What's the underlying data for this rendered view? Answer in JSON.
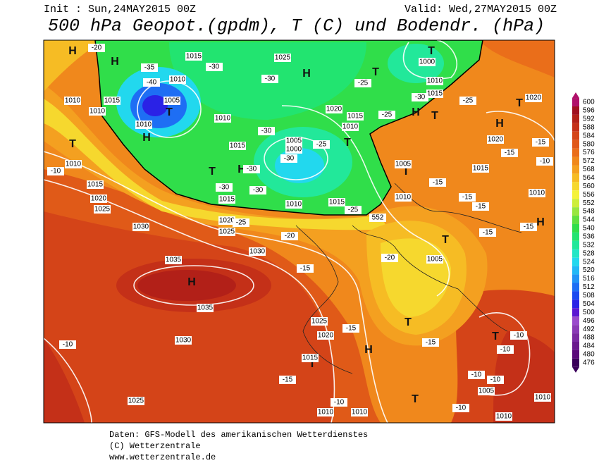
{
  "header": {
    "init": "Init : Sun,24MAY2015 00Z",
    "valid": "Valid: Wed,27MAY2015 00Z",
    "title": "500 hPa Geopot.(gpdm), T (C) und Bodendr. (hPa)"
  },
  "colorbar": {
    "levels": [
      600,
      596,
      592,
      588,
      584,
      580,
      576,
      572,
      568,
      564,
      560,
      556,
      552,
      548,
      544,
      540,
      536,
      532,
      528,
      524,
      520,
      516,
      512,
      508,
      504,
      500,
      496,
      492,
      488,
      484,
      480,
      476
    ]
  },
  "map": {
    "pressure_centers": [
      "H",
      "H",
      "H",
      "H",
      "H",
      "H",
      "H",
      "H",
      "H",
      "H",
      "T",
      "T",
      "T",
      "T",
      "T",
      "T",
      "T",
      "T",
      "T",
      "T",
      "T",
      "T",
      "T",
      "T"
    ],
    "isobar_labels": [
      "1015",
      "1025",
      "1010",
      "1005",
      "1015",
      "1010",
      "1010",
      "1010",
      "1010",
      "1020",
      "1015",
      "1010",
      "1005",
      "1000",
      "1015",
      "1015",
      "1010",
      "1015",
      "1020",
      "1025",
      "1030",
      "1030",
      "1035",
      "1035",
      "1030",
      "1025",
      "1025",
      "1020",
      "1015",
      "1010",
      "1010",
      "1010",
      "1005",
      "1005",
      "1010",
      "1010",
      "1015",
      "1015",
      "1020",
      "1025",
      "1020",
      "1020",
      "1000",
      "1010",
      "1015",
      "1010",
      "1005",
      "1010"
    ],
    "temperature_labels": [
      "-20",
      "-35",
      "-40",
      "-30",
      "-30",
      "-25",
      "-25",
      "-30",
      "-25",
      "-25",
      "-30",
      "-30",
      "-30",
      "-30",
      "-30",
      "-25",
      "-25",
      "-20",
      "-20",
      "-15",
      "-15",
      "-15",
      "-15",
      "-15",
      "-15",
      "-15",
      "-15",
      "-10",
      "-15",
      "-15",
      "-10",
      "-10",
      "-10",
      "-15",
      "-10",
      "-10",
      "-10",
      "-10",
      "-10"
    ],
    "height_label": "552"
  },
  "footer": {
    "line1": "Daten: GFS-Modell des amerikanischen Wetterdienstes",
    "line2": "(C) Wetterzentrale",
    "line3": "www.wetterzentrale.de"
  }
}
